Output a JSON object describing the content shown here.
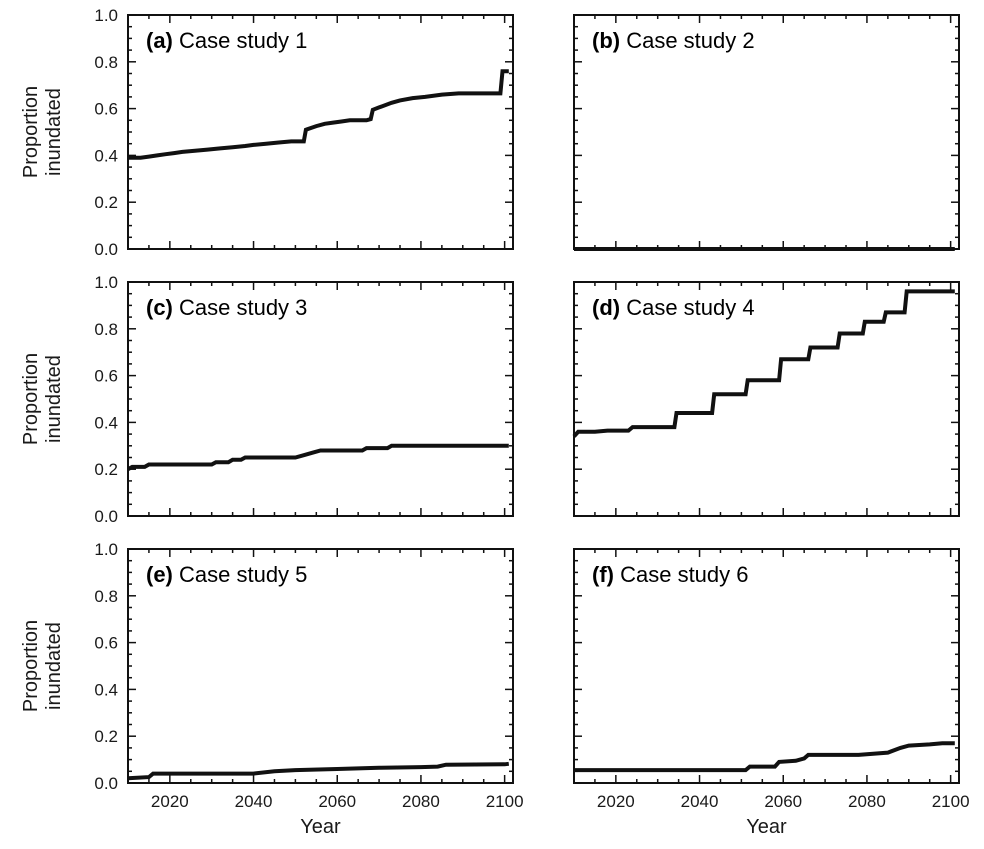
{
  "figure": {
    "xlabel": "Year",
    "ylabel_line1": "Proportion",
    "ylabel_line2": "inundated"
  },
  "chart_data": [
    {
      "type": "line",
      "letter": "(a)",
      "title": "Case study 1",
      "xlabel": "",
      "ylabel": "Proportion inundated",
      "xlim": [
        2010,
        2102
      ],
      "ylim": [
        0,
        1
      ],
      "xticks": [
        2020,
        2040,
        2060,
        2080,
        2100
      ],
      "yticks": [
        "0.0",
        "0.2",
        "0.4",
        "0.6",
        "0.8",
        "1.0"
      ],
      "grid": false,
      "x": [
        2010,
        2013,
        2015,
        2017,
        2019,
        2021,
        2023,
        2026,
        2029,
        2032,
        2035,
        2038,
        2040,
        2043,
        2046,
        2049,
        2051,
        2052,
        2052.5,
        2055,
        2057,
        2059,
        2061,
        2063,
        2067,
        2068,
        2068.5,
        2070,
        2073,
        2075,
        2078,
        2081,
        2085,
        2089,
        2092,
        2095,
        2098,
        2099,
        2099.5,
        2101
      ],
      "y": [
        0.39,
        0.39,
        0.395,
        0.4,
        0.405,
        0.41,
        0.415,
        0.42,
        0.425,
        0.43,
        0.435,
        0.44,
        0.445,
        0.45,
        0.455,
        0.46,
        0.46,
        0.46,
        0.51,
        0.525,
        0.535,
        0.54,
        0.545,
        0.55,
        0.55,
        0.555,
        0.595,
        0.605,
        0.625,
        0.635,
        0.645,
        0.65,
        0.66,
        0.665,
        0.665,
        0.665,
        0.665,
        0.665,
        0.76,
        0.76
      ]
    },
    {
      "type": "line",
      "letter": "(b)",
      "title": "Case study 2",
      "xlabel": "",
      "ylabel": "",
      "xlim": [
        2010,
        2102
      ],
      "ylim": [
        0,
        1
      ],
      "xticks": [
        2020,
        2040,
        2060,
        2080,
        2100
      ],
      "yticks": [
        "0.0",
        "0.2",
        "0.4",
        "0.6",
        "0.8",
        "1.0"
      ],
      "grid": false,
      "x": [
        2010,
        2101
      ],
      "y": [
        0.0,
        0.0
      ]
    },
    {
      "type": "line",
      "letter": "(c)",
      "title": "Case study 3",
      "xlabel": "",
      "ylabel": "Proportion inundated",
      "xlim": [
        2010,
        2102
      ],
      "ylim": [
        0,
        1
      ],
      "xticks": [
        2020,
        2040,
        2060,
        2080,
        2100
      ],
      "yticks": [
        "0.0",
        "0.2",
        "0.4",
        "0.6",
        "0.8",
        "1.0"
      ],
      "grid": false,
      "x": [
        2010,
        2011,
        2014,
        2015,
        2030,
        2031,
        2034,
        2035,
        2037,
        2038,
        2050,
        2052,
        2054,
        2056,
        2066,
        2067,
        2072,
        2073,
        2101
      ],
      "y": [
        0.2,
        0.21,
        0.21,
        0.22,
        0.22,
        0.23,
        0.23,
        0.24,
        0.24,
        0.25,
        0.25,
        0.26,
        0.27,
        0.28,
        0.28,
        0.29,
        0.29,
        0.3,
        0.3
      ]
    },
    {
      "type": "line",
      "letter": "(d)",
      "title": "Case study 4",
      "xlabel": "",
      "ylabel": "",
      "xlim": [
        2010,
        2102
      ],
      "ylim": [
        0,
        1
      ],
      "xticks": [
        2020,
        2040,
        2060,
        2080,
        2100
      ],
      "yticks": [
        "0.0",
        "0.2",
        "0.4",
        "0.6",
        "0.8",
        "1.0"
      ],
      "grid": false,
      "x": [
        2010,
        2011,
        2015,
        2018,
        2023,
        2024,
        2034,
        2034.5,
        2043,
        2043.5,
        2051,
        2051.5,
        2059,
        2059.5,
        2066,
        2066.5,
        2073,
        2073.5,
        2079,
        2079.5,
        2084,
        2084.5,
        2089,
        2089.5,
        2101
      ],
      "y": [
        0.34,
        0.36,
        0.36,
        0.365,
        0.365,
        0.38,
        0.38,
        0.44,
        0.44,
        0.52,
        0.52,
        0.58,
        0.58,
        0.67,
        0.67,
        0.72,
        0.72,
        0.78,
        0.78,
        0.83,
        0.83,
        0.87,
        0.87,
        0.96,
        0.96
      ]
    },
    {
      "type": "line",
      "letter": "(e)",
      "title": "Case study 5",
      "xlabel": "Year",
      "ylabel": "Proportion inundated",
      "xlim": [
        2010,
        2102
      ],
      "ylim": [
        0,
        1
      ],
      "xticks": [
        2020,
        2040,
        2060,
        2080,
        2100
      ],
      "yticks": [
        "0.0",
        "0.2",
        "0.4",
        "0.6",
        "0.8",
        "1.0"
      ],
      "grid": false,
      "x": [
        2010,
        2015,
        2016,
        2040,
        2045,
        2050,
        2060,
        2070,
        2080,
        2084,
        2086,
        2100,
        2101
      ],
      "y": [
        0.02,
        0.025,
        0.04,
        0.04,
        0.05,
        0.055,
        0.06,
        0.065,
        0.068,
        0.07,
        0.078,
        0.08,
        0.082
      ]
    },
    {
      "type": "line",
      "letter": "(f)",
      "title": "Case study 6",
      "xlabel": "Year",
      "ylabel": "",
      "xlim": [
        2010,
        2102
      ],
      "ylim": [
        0,
        1
      ],
      "xticks": [
        2020,
        2040,
        2060,
        2080,
        2100
      ],
      "yticks": [
        "0.0",
        "0.2",
        "0.4",
        "0.6",
        "0.8",
        "1.0"
      ],
      "grid": false,
      "x": [
        2010,
        2051,
        2052,
        2058,
        2059,
        2063,
        2065,
        2066,
        2078,
        2085,
        2088,
        2090,
        2095,
        2098,
        2101
      ],
      "y": [
        0.055,
        0.055,
        0.07,
        0.07,
        0.09,
        0.095,
        0.105,
        0.12,
        0.12,
        0.13,
        0.15,
        0.16,
        0.165,
        0.17,
        0.17
      ]
    }
  ]
}
